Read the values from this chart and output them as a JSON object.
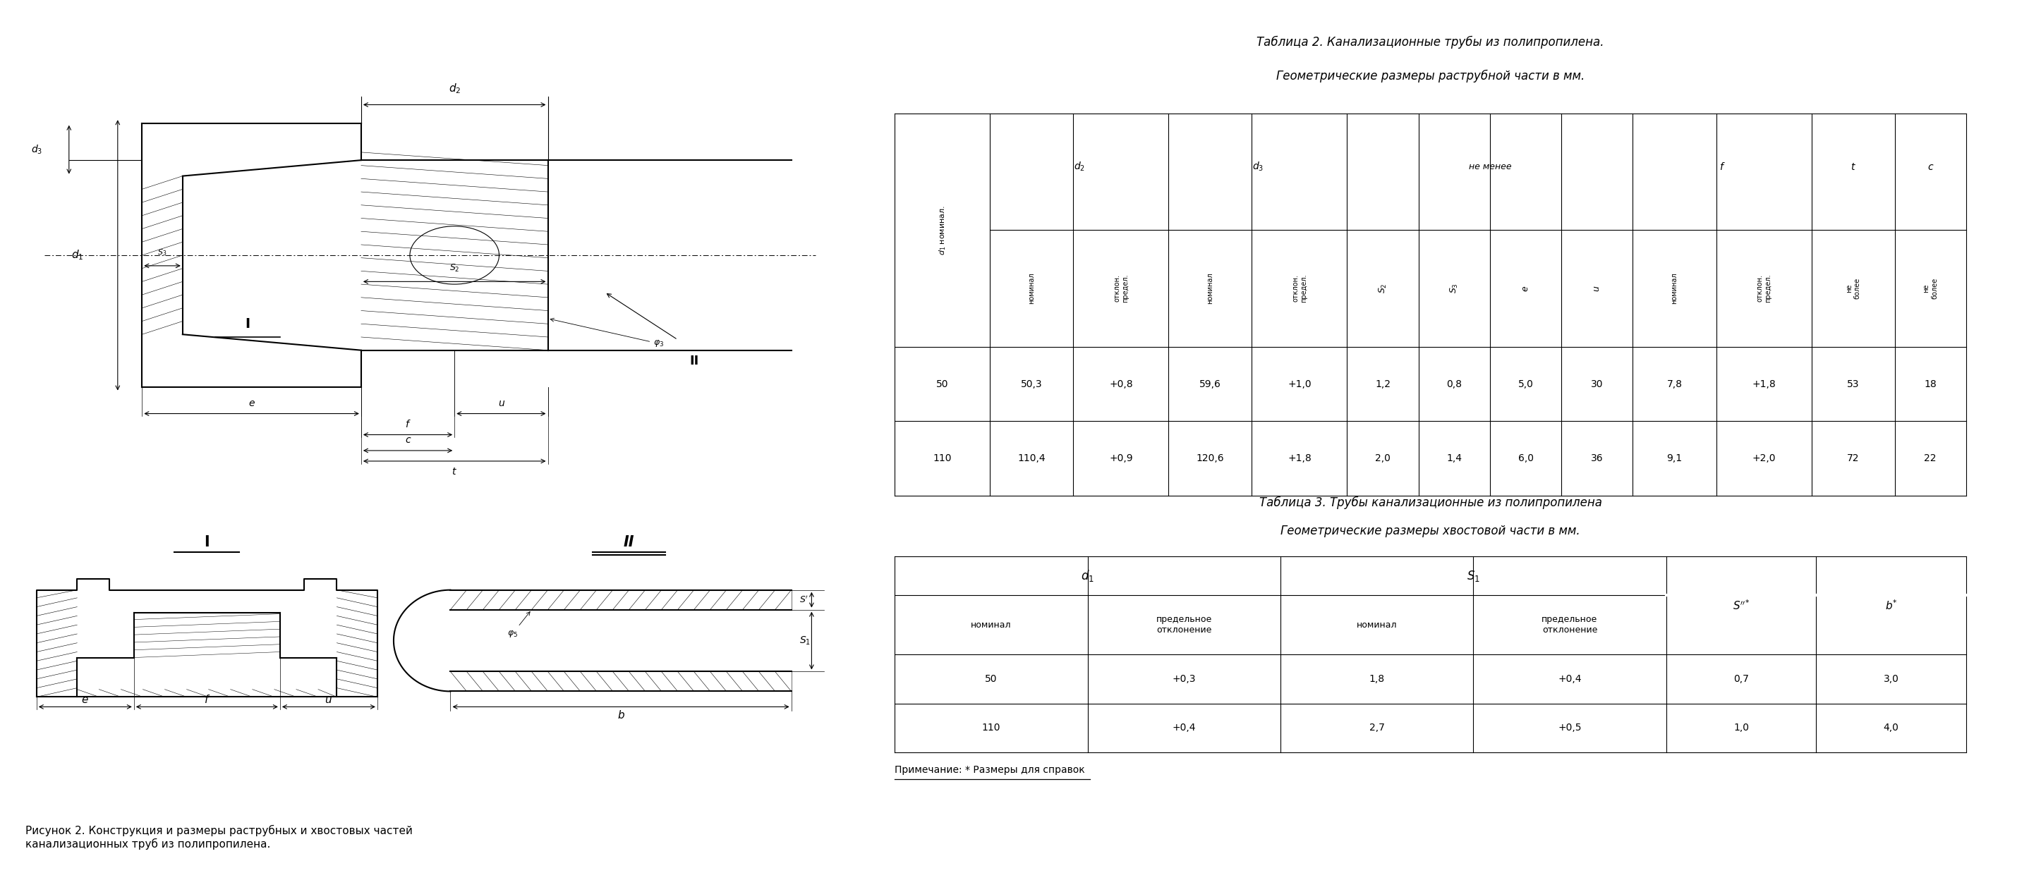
{
  "fig_caption": "Рисунок 2. Конструкция и размеры раструбных и хвостовых частей\nканализационных труб из полипропилена.",
  "table2_title1": "Таблица 2. Канализационные трубы из полипропилена.",
  "table2_title2": "Геометрические размеры раструбной части в мм.",
  "table3_title1": "Таблица 3. Трубы канализационные из полипропилена",
  "table3_title2": "Геометрические размеры хвостовой части в мм.",
  "table2_data": [
    [
      "50",
      "50,3",
      "+0,8",
      "59,6",
      "+1,0",
      "1,2",
      "0,8",
      "5,0",
      "30",
      "7,8",
      "+1,8",
      "53",
      "18"
    ],
    [
      "110",
      "110,4",
      "+0,9",
      "120,6",
      "+1,8",
      "2,0",
      "1,4",
      "6,0",
      "36",
      "9,1",
      "+2,0",
      "72",
      "22"
    ]
  ],
  "table3_data": [
    [
      "50",
      "+0,3",
      "1,8",
      "+0,4",
      "0,7",
      "3,0"
    ],
    [
      "110",
      "+0,4",
      "2,7",
      "+0,5",
      "1,0",
      "4,0"
    ]
  ],
  "note": "Примечание: * Размеры для справок",
  "font_size": 11,
  "title_font_size": 12
}
